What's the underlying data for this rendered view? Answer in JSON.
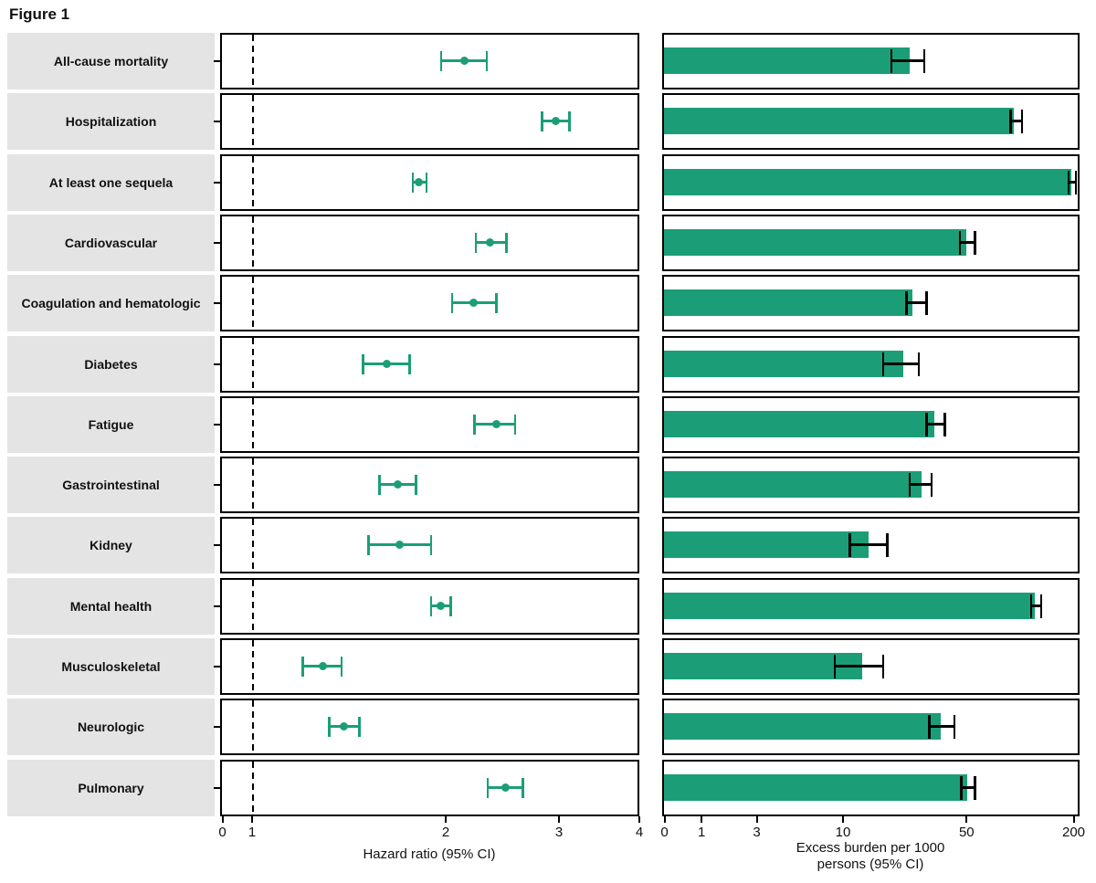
{
  "title": "Figure 1",
  "colors": {
    "marker_green": "#1b9e77",
    "error_bar_black": "#000000",
    "label_background": "#e4e4e4",
    "panel_border": "#000000"
  },
  "left_axis": {
    "label": "Hazard ratio (95% CI)",
    "ticks": [
      0,
      1,
      2,
      3,
      4
    ],
    "scale": "log",
    "reference_line_value": 1
  },
  "right_axis": {
    "label": "Excess burden per 1000 persons (95% CI)",
    "label_lines": [
      "Excess burden per 1000",
      "persons (95% CI)"
    ],
    "ticks": [
      0,
      1,
      3,
      10,
      50,
      200
    ],
    "scale": "asinh"
  },
  "chart_data": [
    {
      "type": "scatter",
      "title": "Hazard ratio forest plot",
      "xlabel": "Hazard ratio (95% CI)",
      "xlim": [
        0,
        4
      ],
      "x_scale": "log",
      "reference_line": 1,
      "grid": false,
      "legend": "none",
      "categories": [
        "All-cause mortality",
        "Hospitalization",
        "At least one sequela",
        "Cardiovascular",
        "Coagulation and hematologic",
        "Diabetes",
        "Fatigue",
        "Gastrointestinal",
        "Kidney",
        "Mental health",
        "Musculoskeletal",
        "Neurologic",
        "Pulmonary"
      ],
      "series": [
        {
          "name": "Hazard ratio",
          "values": [
            2.14,
            2.97,
            1.82,
            2.35,
            2.21,
            1.62,
            2.4,
            1.69,
            1.7,
            1.97,
            1.29,
            1.39,
            2.48
          ],
          "ci_low": [
            1.97,
            2.83,
            1.78,
            2.23,
            2.05,
            1.49,
            2.22,
            1.58,
            1.52,
            1.9,
            1.2,
            1.32,
            2.33
          ],
          "ci_high": [
            2.32,
            3.12,
            1.87,
            2.49,
            2.4,
            1.76,
            2.57,
            1.8,
            1.9,
            2.04,
            1.38,
            1.47,
            2.64
          ]
        }
      ]
    },
    {
      "type": "bar",
      "title": "Excess burden bar plot",
      "xlabel": "Excess burden per 1000 persons (95% CI)",
      "xlim": [
        0,
        200
      ],
      "x_scale": "asinh",
      "grid": false,
      "legend": "none",
      "categories": [
        "All-cause mortality",
        "Hospitalization",
        "At least one sequela",
        "Cardiovascular",
        "Coagulation and hematologic",
        "Diabetes",
        "Fatigue",
        "Gastrointestinal",
        "Kidney",
        "Mental health",
        "Musculoskeletal",
        "Neurologic",
        "Pulmonary"
      ],
      "values": [
        24,
        93,
        195,
        50,
        25,
        22,
        33,
        28,
        14,
        122,
        13,
        36,
        51
      ],
      "ci_low": [
        19,
        89,
        188,
        46,
        23,
        17,
        30,
        24,
        11,
        116,
        9,
        31,
        47
      ],
      "ci_high": [
        29,
        103,
        207,
        56,
        30,
        27,
        38,
        32,
        18,
        132,
        17,
        43,
        56
      ]
    }
  ]
}
